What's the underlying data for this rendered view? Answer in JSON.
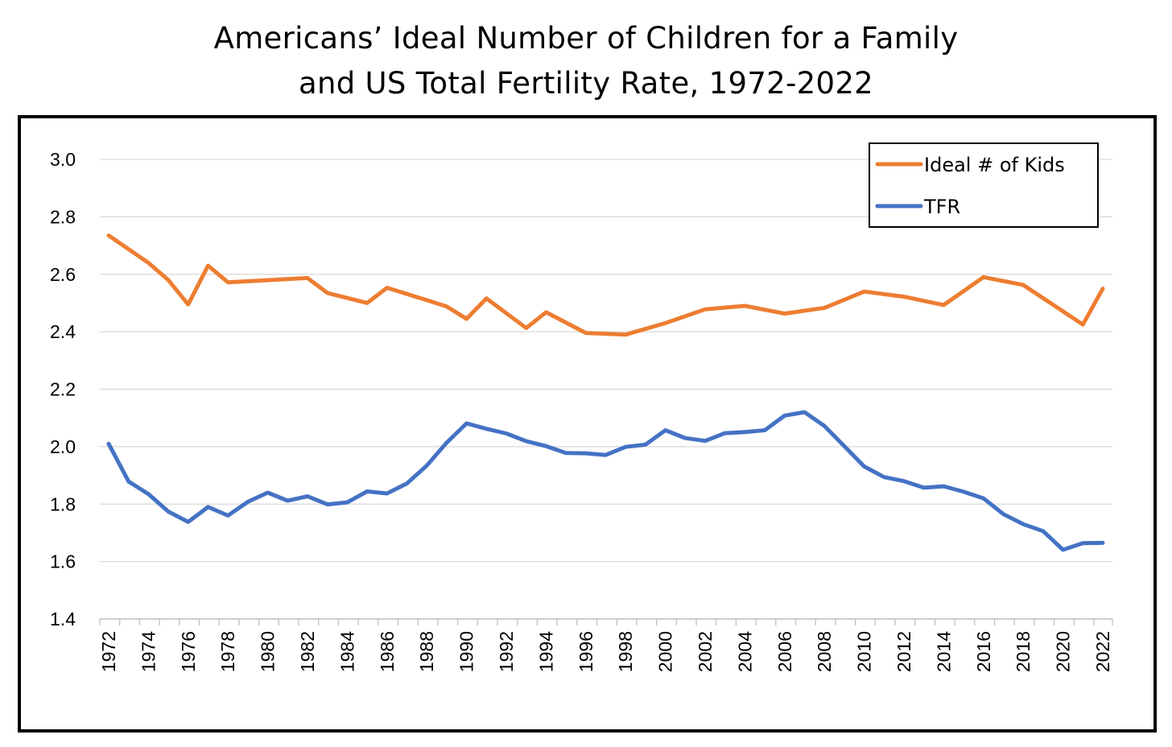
{
  "chart_data": {
    "type": "line",
    "title_line1": "Americans’ Ideal Number of Children for a Family",
    "title_line2": "and US Total Fertility Rate, 1972-2022",
    "xlabel": "",
    "ylabel": "",
    "ylim": [
      1.4,
      3.0
    ],
    "yticks": [
      "1.4",
      "1.6",
      "1.8",
      "2.0",
      "2.2",
      "2.4",
      "2.6",
      "2.8",
      "3.0"
    ],
    "xlim": [
      1972,
      2022
    ],
    "xtick_labels": [
      "1972",
      "1974",
      "1976",
      "1978",
      "1980",
      "1982",
      "1984",
      "1986",
      "1988",
      "1990",
      "1992",
      "1994",
      "1996",
      "1998",
      "2000",
      "2002",
      "2004",
      "2006",
      "2008",
      "2010",
      "2012",
      "2014",
      "2016",
      "2018",
      "2020",
      "2022"
    ],
    "grid": true,
    "legend_position": "top-right",
    "series": [
      {
        "name": "Ideal # of Kids",
        "color": "#ed7d31",
        "points": [
          [
            1972,
            2.735
          ],
          [
            1974,
            2.64
          ],
          [
            1975,
            2.58
          ],
          [
            1976,
            2.495
          ],
          [
            1977,
            2.63
          ],
          [
            1978,
            2.572
          ],
          [
            1982,
            2.587
          ],
          [
            1983,
            2.535
          ],
          [
            1985,
            2.5
          ],
          [
            1986,
            2.553
          ],
          [
            1988,
            2.51
          ],
          [
            1989,
            2.488
          ],
          [
            1990,
            2.445
          ],
          [
            1991,
            2.516
          ],
          [
            1993,
            2.413
          ],
          [
            1994,
            2.468
          ],
          [
            1996,
            2.396
          ],
          [
            1998,
            2.39
          ],
          [
            2000,
            2.43
          ],
          [
            2002,
            2.478
          ],
          [
            2004,
            2.49
          ],
          [
            2006,
            2.463
          ],
          [
            2008,
            2.483
          ],
          [
            2010,
            2.54
          ],
          [
            2012,
            2.522
          ],
          [
            2014,
            2.493
          ],
          [
            2016,
            2.59
          ],
          [
            2018,
            2.563
          ],
          [
            2021,
            2.425
          ],
          [
            2022,
            2.55
          ]
        ]
      },
      {
        "name": "TFR",
        "color": "#4472c4",
        "points": [
          [
            1972,
            2.01
          ],
          [
            1973,
            1.879
          ],
          [
            1974,
            1.835
          ],
          [
            1975,
            1.774
          ],
          [
            1976,
            1.738
          ],
          [
            1977,
            1.79
          ],
          [
            1978,
            1.76
          ],
          [
            1979,
            1.808
          ],
          [
            1980,
            1.84
          ],
          [
            1981,
            1.812
          ],
          [
            1982,
            1.827
          ],
          [
            1983,
            1.799
          ],
          [
            1984,
            1.806
          ],
          [
            1985,
            1.844
          ],
          [
            1986,
            1.837
          ],
          [
            1987,
            1.872
          ],
          [
            1988,
            1.934
          ],
          [
            1989,
            2.014
          ],
          [
            1990,
            2.081
          ],
          [
            1991,
            2.062
          ],
          [
            1992,
            2.046
          ],
          [
            1993,
            2.019
          ],
          [
            1994,
            2.002
          ],
          [
            1995,
            1.978
          ],
          [
            1996,
            1.977
          ],
          [
            1997,
            1.971
          ],
          [
            1998,
            1.999
          ],
          [
            1999,
            2.007
          ],
          [
            2000,
            2.057
          ],
          [
            2001,
            2.03
          ],
          [
            2002,
            2.02
          ],
          [
            2003,
            2.047
          ],
          [
            2004,
            2.051
          ],
          [
            2005,
            2.057
          ],
          [
            2006,
            2.108
          ],
          [
            2007,
            2.12
          ],
          [
            2008,
            2.072
          ],
          [
            2009,
            2.002
          ],
          [
            2010,
            1.931
          ],
          [
            2011,
            1.894
          ],
          [
            2012,
            1.88
          ],
          [
            2013,
            1.857
          ],
          [
            2014,
            1.862
          ],
          [
            2015,
            1.843
          ],
          [
            2016,
            1.82
          ],
          [
            2017,
            1.765
          ],
          [
            2018,
            1.73
          ],
          [
            2019,
            1.706
          ],
          [
            2020,
            1.641
          ],
          [
            2021,
            1.664
          ],
          [
            2022,
            1.665
          ]
        ]
      }
    ]
  }
}
